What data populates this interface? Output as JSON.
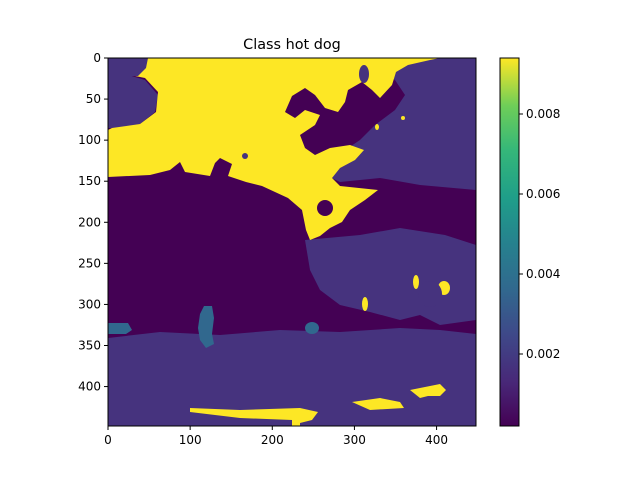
{
  "chart_data": {
    "type": "heatmap",
    "title": "Class hot dog",
    "xlabel": "",
    "ylabel": "",
    "x_ticks": [
      0,
      100,
      200,
      300,
      400
    ],
    "y_ticks": [
      0,
      50,
      100,
      150,
      200,
      250,
      300,
      350,
      400
    ],
    "xlim": [
      0,
      448
    ],
    "ylim": [
      448,
      0
    ],
    "image_shape": [
      448,
      448
    ],
    "colormap": "viridis",
    "grid": false,
    "colorbar": {
      "range": [
        0.0002,
        0.0094
      ],
      "ticks": [
        0.002,
        0.004,
        0.006,
        0.008
      ],
      "tick_labels": [
        "0.002",
        "0.004",
        "0.006",
        "0.008"
      ]
    },
    "regions": [
      {
        "name": "background",
        "value": 0.0002
      },
      {
        "name": "upper-right band",
        "value": 0.0013
      },
      {
        "name": "lower band",
        "value": 0.0011
      },
      {
        "name": "high-activation zones",
        "value": 0.0094
      },
      {
        "name": "mid-activation blobs",
        "value": 0.0035
      }
    ]
  },
  "colors": {
    "viridis_low": "#440154",
    "viridis_band": "#46337e",
    "viridis_mid": "#31688e",
    "viridis_high": "#fde725"
  }
}
